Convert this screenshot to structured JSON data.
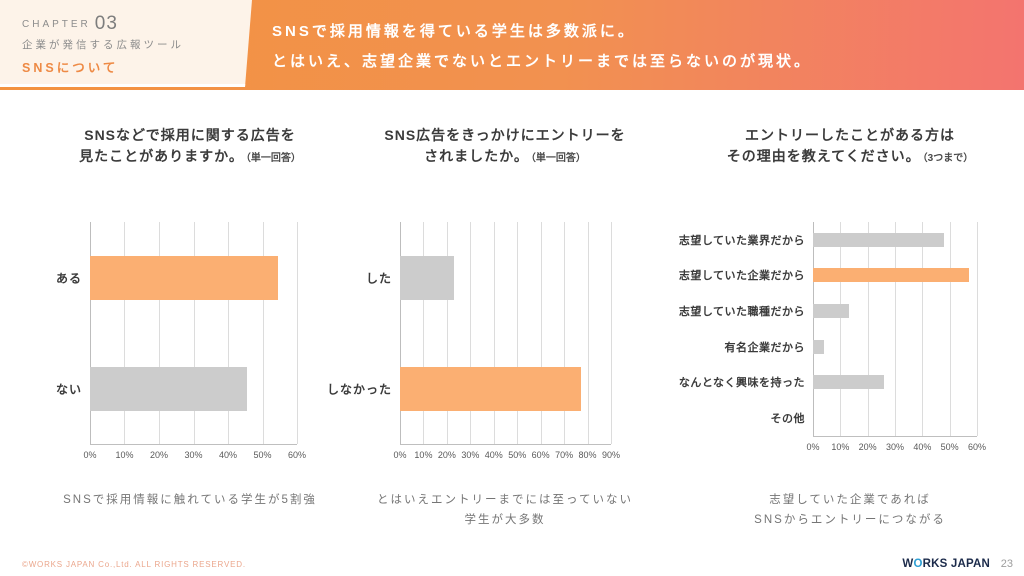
{
  "header": {
    "chapter_label": "CHAPTER",
    "chapter_number": "03",
    "chapter_subtitle": "企業が発信する広報ツール",
    "chapter_topic": "SNSについて",
    "title_line1": "SNSで採用情報を得ている学生は多数派に。",
    "title_line2": "とはいえ、志望企業でないとエントリーまでは至らないのが現状。"
  },
  "colors": {
    "banner_gradient_start": "#f3923f",
    "banner_gradient_end": "#f3746f",
    "chapter_block_bg": "#fdf3e9",
    "accent_orange_bar": "#fbaf72",
    "gray_bar": "#cccccc",
    "gridline": "#dcdcdc"
  },
  "chart_data": [
    {
      "type": "bar",
      "orientation": "horizontal",
      "title_lines": [
        "SNSなどで採用に関する広告を",
        "見たことがありますか。"
      ],
      "title_note": "（単一回答）",
      "categories": [
        "ある",
        "ない"
      ],
      "values": [
        54.5,
        45.5
      ],
      "bar_colors": [
        "#fbaf72",
        "#cccccc"
      ],
      "xlim": [
        0,
        60
      ],
      "x_ticks": [
        "0%",
        "10%",
        "20%",
        "30%",
        "40%",
        "50%",
        "60%"
      ],
      "grid": true,
      "legend": false,
      "caption_lines": [
        "SNSで採用情報に触れている学生が5割強"
      ]
    },
    {
      "type": "bar",
      "orientation": "horizontal",
      "title_lines": [
        "SNS広告をきっかけにエントリーを",
        "されましたか。"
      ],
      "title_note": "（単一回答）",
      "categories": [
        "した",
        "しなかった"
      ],
      "values": [
        23,
        77
      ],
      "bar_colors": [
        "#cccccc",
        "#fbaf72"
      ],
      "xlim": [
        0,
        90
      ],
      "x_ticks": [
        "0%",
        "10%",
        "20%",
        "30%",
        "40%",
        "50%",
        "60%",
        "70%",
        "80%",
        "90%"
      ],
      "grid": true,
      "legend": false,
      "caption_lines": [
        "とはいえエントリーまでには至っていない",
        "学生が大多数"
      ]
    },
    {
      "type": "bar",
      "orientation": "horizontal",
      "title_lines": [
        "エントリーしたことがある方は",
        "その理由を教えてください。"
      ],
      "title_note": "（3つまで）",
      "categories": [
        "志望していた業界だから",
        "志望していた企業だから",
        "志望していた職種だから",
        "有名企業だから",
        "なんとなく興味を持った",
        "その他"
      ],
      "values": [
        48,
        57,
        13,
        4,
        26,
        0
      ],
      "bar_colors": [
        "#cccccc",
        "#fbaf72",
        "#cccccc",
        "#cccccc",
        "#cccccc",
        "#cccccc"
      ],
      "xlim": [
        0,
        60
      ],
      "x_ticks": [
        "0%",
        "10%",
        "20%",
        "30%",
        "40%",
        "50%",
        "60%"
      ],
      "grid": true,
      "legend": false,
      "caption_lines": [
        "志望していた企業であれば",
        "SNSからエントリーにつながる"
      ]
    }
  ],
  "footer": {
    "copyright": "©WORKS JAPAN Co.,Ltd. ALL RIGHTS RESERVED.",
    "logo_part1": "W",
    "logo_o": "O",
    "logo_part2": "RKS JAPAN",
    "page_number": "23"
  }
}
